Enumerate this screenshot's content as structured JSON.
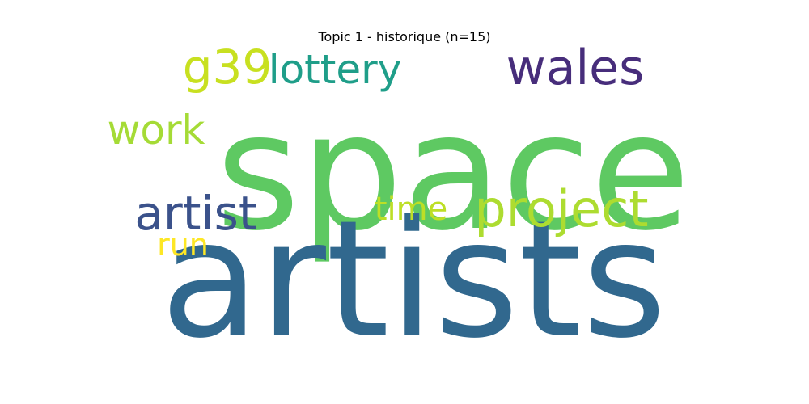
{
  "title": "Topic 1 - historique (n=15)",
  "words": [
    {
      "text": "space",
      "color": "#5ec962"
    },
    {
      "text": "artists",
      "color": "#31688e"
    },
    {
      "text": "wales",
      "color": "#472d7b"
    },
    {
      "text": "g39",
      "color": "#c8e020"
    },
    {
      "text": "lottery",
      "color": "#1f9e89"
    },
    {
      "text": "work",
      "color": "#a5db36"
    },
    {
      "text": "artist",
      "color": "#3b528b"
    },
    {
      "text": "project",
      "color": "#addc30"
    },
    {
      "text": "time",
      "color": "#bddf26"
    },
    {
      "text": "run",
      "color": "#fde725"
    }
  ]
}
